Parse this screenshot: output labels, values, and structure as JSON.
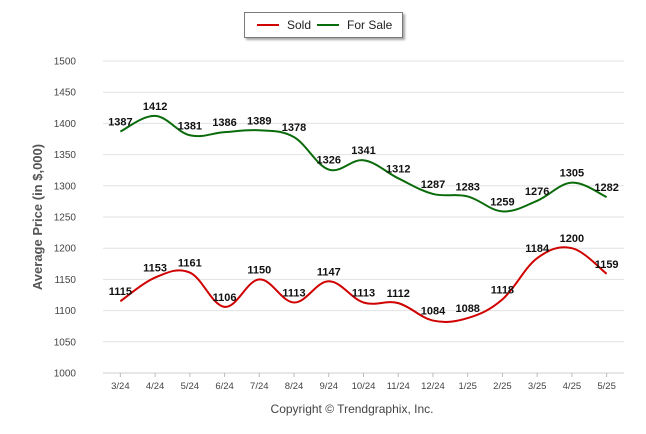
{
  "legend": {
    "items": [
      {
        "label": "Sold",
        "color": "#d00000"
      },
      {
        "label": "For Sale",
        "color": "#0a6b0a"
      }
    ]
  },
  "chart_data": {
    "type": "line",
    "categories": [
      "3/24",
      "4/24",
      "5/24",
      "6/24",
      "7/24",
      "8/24",
      "9/24",
      "10/24",
      "11/24",
      "12/24",
      "1/25",
      "2/25",
      "3/25",
      "4/25",
      "5/25"
    ],
    "series": [
      {
        "name": "Sold",
        "color": "#d00000",
        "values": [
          1115,
          1153,
          1161,
          1106,
          1150,
          1113,
          1147,
          1113,
          1112,
          1084,
          1088,
          1118,
          1184,
          1200,
          1159
        ]
      },
      {
        "name": "For Sale",
        "color": "#0a6b0a",
        "values": [
          1387,
          1412,
          1381,
          1386,
          1389,
          1378,
          1326,
          1341,
          1312,
          1287,
          1283,
          1259,
          1276,
          1305,
          1282
        ]
      }
    ],
    "ylabel": "Average Price (in $,000)",
    "xlabel": "",
    "ylim": [
      1000,
      1500
    ],
    "yticks": [
      1000,
      1050,
      1100,
      1150,
      1200,
      1250,
      1300,
      1350,
      1400,
      1450,
      1500
    ],
    "grid": true,
    "legend_position": "top-center"
  },
  "footer": {
    "copyright": "Copyright © Trendgraphix, Inc."
  }
}
